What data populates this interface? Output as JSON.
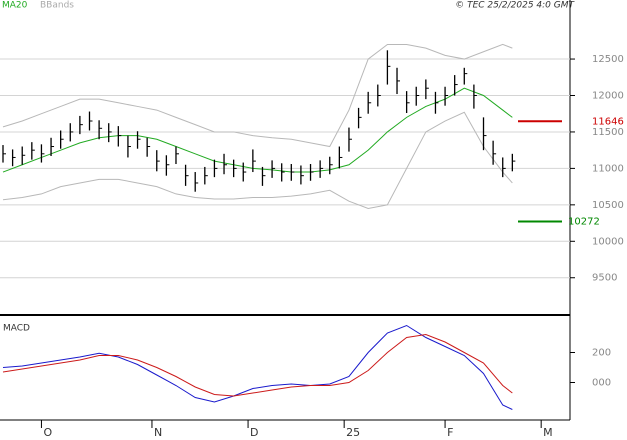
{
  "chart_data": [
    {
      "type": "ohlc",
      "source": "© TEC 25/2/2025 4:0 GMT",
      "grid": true,
      "x": [
        0,
        2,
        4,
        6,
        8,
        10,
        12,
        14,
        16,
        18,
        20,
        22,
        24,
        26,
        28,
        30,
        32,
        34,
        36,
        38,
        40,
        42,
        44,
        46,
        48,
        50,
        52,
        54,
        56,
        58,
        60,
        62,
        64,
        66,
        68,
        70,
        72,
        74,
        76,
        78,
        80,
        82,
        84,
        86,
        88,
        90,
        92,
        94,
        96,
        98,
        100,
        102,
        104,
        106
      ],
      "high": [
        11320,
        11260,
        11300,
        11360,
        11330,
        11420,
        11520,
        11620,
        11720,
        11780,
        11660,
        11620,
        11580,
        11450,
        11510,
        11420,
        11250,
        11180,
        11300,
        11050,
        10950,
        11020,
        11120,
        11200,
        11120,
        11080,
        11260,
        11020,
        11110,
        11070,
        11060,
        11040,
        11060,
        11110,
        11160,
        11300,
        11560,
        11830,
        12050,
        12150,
        12620,
        12380,
        12060,
        12120,
        12220,
        12050,
        12120,
        12280,
        12380,
        12150,
        11700,
        11380,
        11150,
        11200
      ],
      "low": [
        11080,
        11030,
        11050,
        11120,
        11080,
        11170,
        11270,
        11370,
        11470,
        11520,
        11400,
        11360,
        11300,
        11150,
        11270,
        11160,
        10960,
        10900,
        11060,
        10760,
        10680,
        10780,
        10880,
        10920,
        10880,
        10820,
        10950,
        10760,
        10870,
        10820,
        10830,
        10780,
        10830,
        10870,
        10920,
        11000,
        11230,
        11550,
        11750,
        11850,
        12150,
        12020,
        11760,
        11860,
        11950,
        11750,
        11860,
        12000,
        12150,
        11820,
        11250,
        11050,
        10880,
        10960
      ],
      "close": [
        11200,
        11150,
        11180,
        11250,
        11200,
        11300,
        11400,
        11500,
        11600,
        11650,
        11550,
        11500,
        11450,
        11300,
        11400,
        11300,
        11100,
        11050,
        11200,
        10900,
        10800,
        10900,
        11000,
        11050,
        11000,
        10950,
        11100,
        10900,
        11000,
        10950,
        10950,
        10900,
        10950,
        11000,
        11050,
        11150,
        11400,
        11700,
        11900,
        12000,
        12400,
        12200,
        11900,
        12000,
        12100,
        11900,
        12000,
        12150,
        12300,
        12000,
        11450,
        11200,
        11000,
        11100
      ],
      "ma": {
        "name": "MA20",
        "color": "#22aa22",
        "x": [
          0,
          4,
          8,
          12,
          16,
          20,
          24,
          28,
          32,
          36,
          40,
          44,
          48,
          52,
          56,
          60,
          64,
          68,
          72,
          76,
          80,
          84,
          88,
          92,
          96,
          100,
          104,
          106
        ],
        "values": [
          10950,
          11050,
          11150,
          11250,
          11350,
          11420,
          11450,
          11450,
          11400,
          11300,
          11200,
          11100,
          11050,
          11000,
          10980,
          10950,
          10950,
          10980,
          11050,
          11250,
          11500,
          11700,
          11850,
          11950,
          12100,
          12000,
          11800,
          11700
        ]
      },
      "bands": {
        "name": "BBands",
        "color": "#b8b8b8",
        "x": [
          0,
          4,
          8,
          12,
          16,
          20,
          24,
          28,
          32,
          36,
          40,
          44,
          48,
          52,
          56,
          60,
          64,
          68,
          72,
          76,
          80,
          84,
          88,
          92,
          96,
          100,
          104,
          106
        ],
        "upper": [
          11570,
          11650,
          11750,
          11850,
          11950,
          11950,
          11900,
          11850,
          11800,
          11700,
          11600,
          11500,
          11500,
          11450,
          11420,
          11400,
          11350,
          11300,
          11800,
          12500,
          12700,
          12700,
          12650,
          12550,
          12500,
          12600,
          12700,
          12650
        ],
        "lower": [
          10570,
          10600,
          10650,
          10750,
          10800,
          10850,
          10850,
          10800,
          10750,
          10650,
          10600,
          10580,
          10580,
          10600,
          10600,
          10620,
          10650,
          10700,
          10550,
          10450,
          10500,
          11000,
          11500,
          11650,
          11770,
          11300,
          10950,
          10800
        ]
      },
      "levels": [
        {
          "value": 11646,
          "color": "#cc0000"
        },
        {
          "value": 10272,
          "color": "#008800"
        }
      ],
      "ylim": [
        9030,
        13310
      ],
      "yticks": [
        9500,
        10000,
        10500,
        11000,
        11500,
        12000,
        12500
      ]
    },
    {
      "type": "line",
      "title": "MACD",
      "grid": false,
      "x": [
        0,
        4,
        8,
        12,
        16,
        20,
        24,
        28,
        32,
        36,
        40,
        44,
        48,
        52,
        56,
        60,
        64,
        68,
        72,
        76,
        80,
        84,
        88,
        92,
        96,
        100,
        104,
        106
      ],
      "series": [
        {
          "color": "#1a1acc",
          "values": [
            100,
            110,
            130,
            150,
            170,
            195,
            170,
            120,
            50,
            -20,
            -100,
            -130,
            -90,
            -40,
            -20,
            -10,
            -20,
            -10,
            40,
            200,
            330,
            380,
            300,
            240,
            180,
            60,
            -150,
            -180
          ]
        },
        {
          "color": "#cc1a1a",
          "values": [
            70,
            90,
            110,
            130,
            150,
            180,
            180,
            150,
            100,
            40,
            -30,
            -80,
            -90,
            -70,
            -50,
            -30,
            -20,
            -20,
            0,
            80,
            200,
            300,
            320,
            270,
            200,
            130,
            -20,
            -70
          ]
        }
      ],
      "ylim": [
        -250,
        430
      ],
      "yticks": [
        200,
        {
          "value": 0,
          "label": "000"
        }
      ],
      "xlim": [
        0,
        118
      ],
      "xticks": [
        {
          "value": 8,
          "label": "O"
        },
        {
          "value": 31,
          "label": "N"
        },
        {
          "value": 51,
          "label": "D"
        },
        {
          "value": 71,
          "label": "25"
        },
        {
          "value": 92,
          "label": "F"
        },
        {
          "value": 112,
          "label": "M"
        }
      ]
    }
  ]
}
